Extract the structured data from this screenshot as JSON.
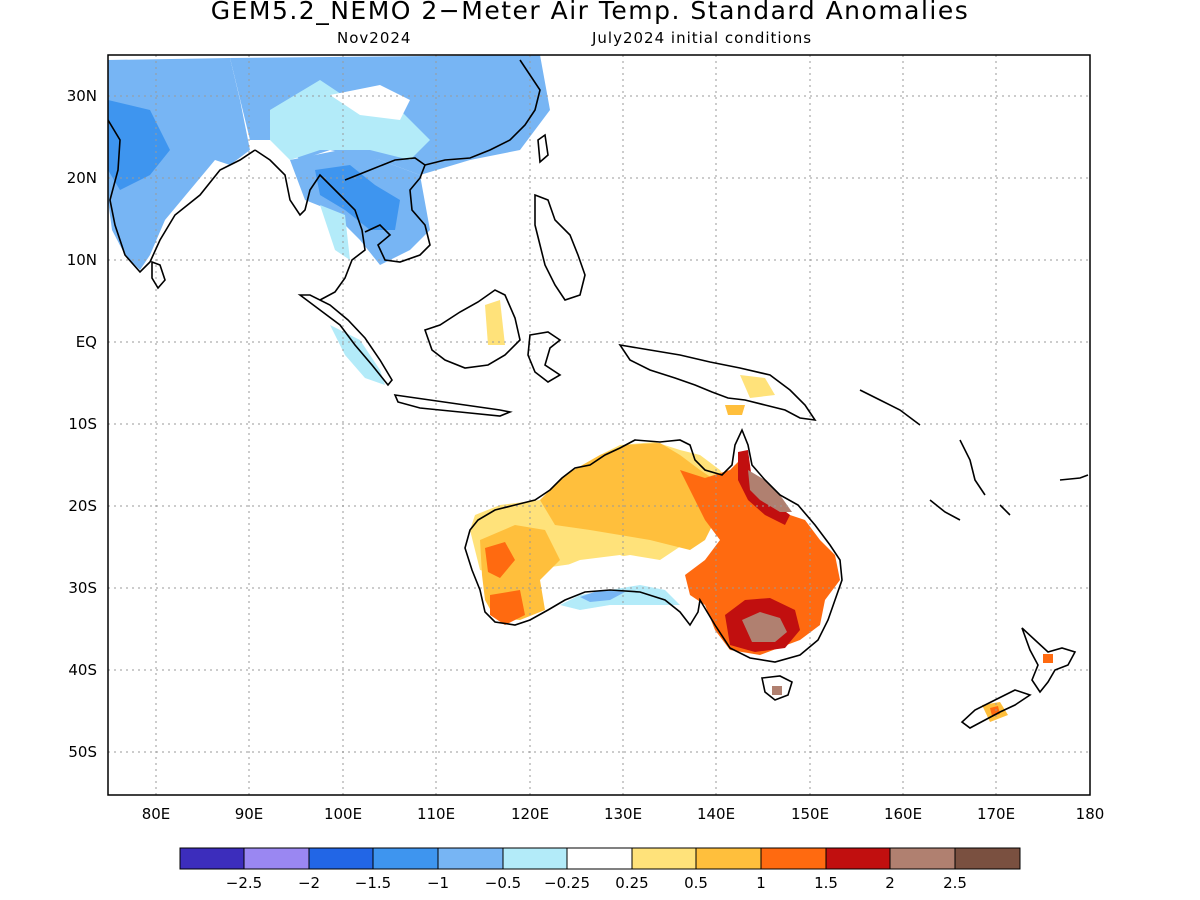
{
  "title": "GEM5.2_NEMO 2−Meter Air Temp. Standard Anomalies",
  "subtitle_left": "Nov2024",
  "subtitle_right": "July2024 initial conditions",
  "map": {
    "lon_range": [
      75,
      180
    ],
    "lat_range": [
      -55,
      35
    ],
    "lat_labels": [
      "30N",
      "20N",
      "10N",
      "EQ",
      "10S",
      "20S",
      "30S",
      "40S",
      "50S"
    ],
    "lat_values": [
      30,
      20,
      10,
      0,
      -10,
      -20,
      -30,
      -40,
      -50
    ],
    "lon_labels": [
      "80E",
      "90E",
      "100E",
      "110E",
      "120E",
      "130E",
      "140E",
      "150E",
      "160E",
      "170E",
      "180"
    ],
    "lon_values": [
      80,
      90,
      100,
      110,
      120,
      130,
      140,
      150,
      160,
      170,
      180
    ],
    "gridlines": true
  },
  "colorbar": {
    "colors": [
      "#3c2dbc",
      "#9a87f2",
      "#2266e6",
      "#3e95ef",
      "#77b5f4",
      "#b3ebf9",
      "#ffffff",
      "#ffe27a",
      "#ffbf3c",
      "#ff6a10",
      "#c10f0f",
      "#b08070",
      "#7a5040"
    ],
    "labels": [
      "−2.5",
      "−2",
      "−1.5",
      "−1",
      "−0.5",
      "−0.25",
      "0.25",
      "0.5",
      "1",
      "1.5",
      "2",
      "2.5"
    ]
  }
}
